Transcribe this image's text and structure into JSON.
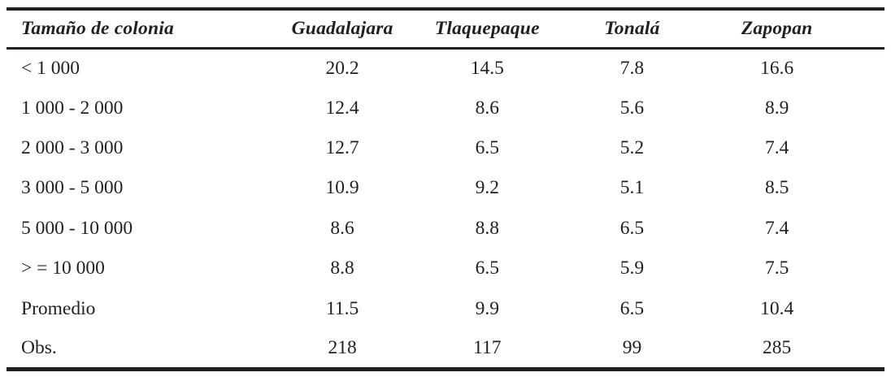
{
  "table": {
    "columns": [
      "Tamaño de colonia",
      "Guadalajara",
      "Tlaquepaque",
      "Tonalá",
      "Zapopan"
    ],
    "rows": [
      {
        "label": "< 1 000",
        "values": [
          "20.2",
          "14.5",
          "7.8",
          "16.6"
        ]
      },
      {
        "label": "1 000 - 2 000",
        "values": [
          "12.4",
          "8.6",
          "5.6",
          "8.9"
        ]
      },
      {
        "label": "2 000 - 3 000",
        "values": [
          "12.7",
          "6.5",
          "5.2",
          "7.4"
        ]
      },
      {
        "label": "3 000 - 5 000",
        "values": [
          "10.9",
          "9.2",
          "5.1",
          "8.5"
        ]
      },
      {
        "label": "5 000 - 10 000",
        "values": [
          "8.6",
          "8.8",
          "6.5",
          "7.4"
        ]
      },
      {
        "label": "> = 10 000",
        "values": [
          "8.8",
          "6.5",
          "5.9",
          "7.5"
        ]
      },
      {
        "label": "Promedio",
        "values": [
          "11.5",
          "9.9",
          "6.5",
          "10.4"
        ]
      },
      {
        "label": "Obs.",
        "values": [
          "218",
          "117",
          "99",
          "285"
        ]
      }
    ]
  },
  "colors": {
    "text": "#231f20",
    "rule": "#231f20",
    "background": "#ffffff"
  }
}
